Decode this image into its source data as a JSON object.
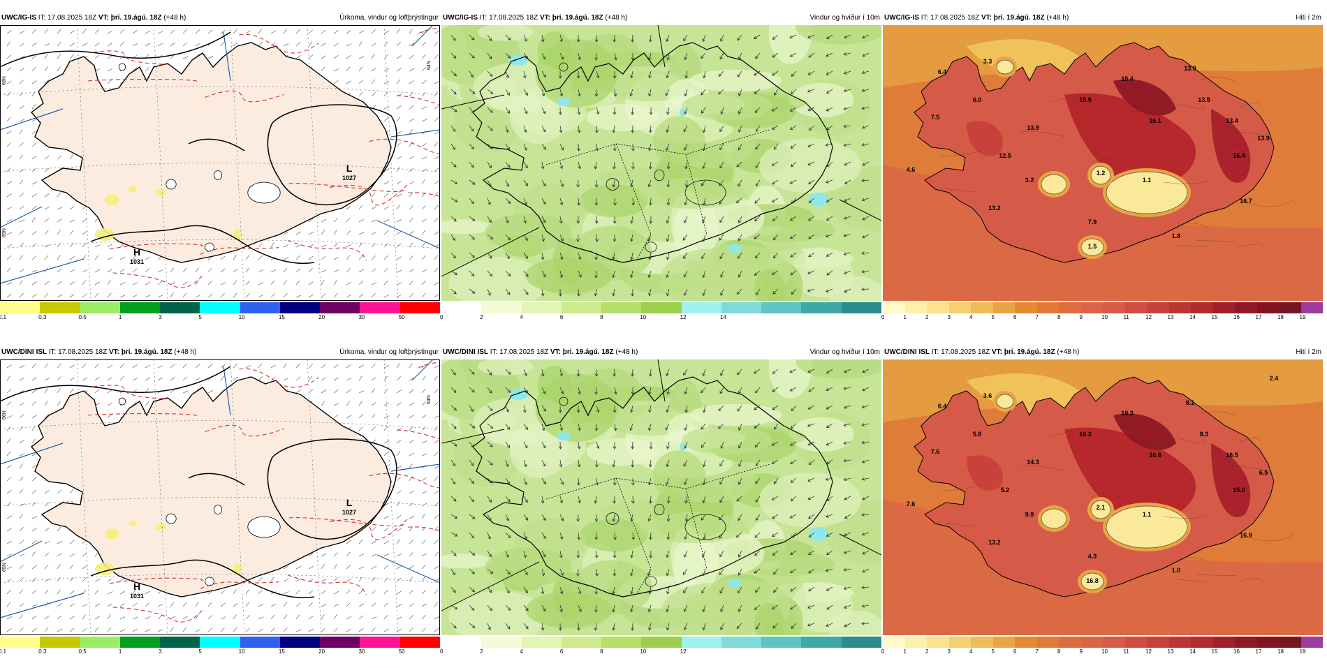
{
  "panels": [
    {
      "model": "UWC/IG-IS",
      "it": "IT: 17.08.2025 18Z",
      "vt": "VT: þri. 19.ágú. 18Z",
      "lead": "(+48 h)",
      "product": "Úrkoma, vindur og loftþrýstingur",
      "type": "precip",
      "labels": [
        {
          "text": "H",
          "big": true
        },
        {
          "text": "1031",
          "big": false
        },
        {
          "text": "L",
          "big": true
        },
        {
          "text": "1027",
          "big": false
        }
      ],
      "lat_labels": [
        "66N",
        "65N",
        "64N"
      ]
    },
    {
      "model": "UWC/IG-IS",
      "it": "IT: 17.08.2025 18Z",
      "vt": "VT: þri. 19.ágú. 18Z",
      "lead": "(+48 h)",
      "product": "Vindur og hviður í 10m",
      "type": "wind"
    },
    {
      "model": "UWC/IG-IS",
      "it": "IT: 17.08.2025 18Z",
      "vt": "VT: þri. 19.ágú. 18Z",
      "lead": "(+48 h)",
      "product": "Hiti í 2m",
      "type": "temp",
      "values": [
        "3.3",
        "6.4",
        "6.0",
        "7.5",
        "4.6",
        "12.5",
        "13.2",
        "13.9",
        "15.5",
        "15.4",
        "13.0",
        "13.5",
        "13.4",
        "13.9",
        "16.1",
        "16.4",
        "16.7",
        "3.2",
        "1.2",
        "1.1",
        "1.8",
        "7.9",
        "1.5"
      ]
    },
    {
      "model": "UWC/DINI ISL",
      "it": "IT: 17.08.2025 18Z",
      "vt": "VT: þri. 19.ágú. 18Z",
      "lead": "(+48 h)",
      "product": "Úrkoma, vindur og loftþrýstingur",
      "type": "precip",
      "labels": [
        {
          "text": "H",
          "big": true
        },
        {
          "text": "1031",
          "big": false
        },
        {
          "text": "L",
          "big": true
        },
        {
          "text": "1027",
          "big": false
        }
      ],
      "lat_labels": [
        "66N",
        "65N",
        "64N"
      ]
    },
    {
      "model": "UWC/DINI ISL",
      "it": "IT: 17.08.2025 18Z",
      "vt": "VT: þri. 19.ágú. 18Z",
      "lead": "(+48 h)",
      "product": "Vindur og hviður í 10m",
      "type": "wind"
    },
    {
      "model": "UWC/DINI ISL",
      "it": "IT: 17.08.2025 18Z",
      "vt": "VT: þri. 19.ágú. 18Z",
      "lead": "(+48 h)",
      "product": "Hiti í 2m",
      "type": "temp",
      "values": [
        "3.6",
        "6.4",
        "5.8",
        "7.6",
        "7.6",
        "5.2",
        "13.2",
        "14.3",
        "16.3",
        "18.3",
        "8.1",
        "8.3",
        "16.5",
        "6.5",
        "16.6",
        "15.0",
        "16.9",
        "9.9",
        "2.1",
        "1.1",
        "1.0",
        "4.3",
        "16.8",
        "2.4"
      ]
    }
  ],
  "colorbars": {
    "precip": {
      "colors": [
        "#ffff88",
        "#c8c800",
        "#9bee64",
        "#00a01e",
        "#006448",
        "#00ffff",
        "#3060f0",
        "#000080",
        "#6e0064",
        "#ff1493",
        "#ff0000"
      ],
      "ticks": [
        "0.1",
        "0.3",
        "0.5",
        "1",
        "3",
        "5",
        "10",
        "15",
        "20",
        "30",
        "50"
      ]
    },
    "wind": {
      "colors": [
        "#ffffff",
        "#f4fbd6",
        "#e3f5b4",
        "#cdeb8c",
        "#b4df68",
        "#9ccf4c",
        "#a0f0f0",
        "#80dada",
        "#5ec4c4",
        "#3ea8a8",
        "#2a8c8c"
      ],
      "ticks_top": [
        "0",
        "2",
        "4",
        "6",
        "8",
        "10",
        "12",
        "14"
      ],
      "ticks_bottom": [
        "0",
        "2",
        "4",
        "6",
        "8",
        "10",
        "12"
      ]
    },
    "temp": {
      "colors": [
        "#fffbc8",
        "#fdf0a8",
        "#fbe28c",
        "#f5d070",
        "#f0bc58",
        "#e9a444",
        "#e68a32",
        "#e07a36",
        "#de6c3e",
        "#dc6446",
        "#d85a48",
        "#d04c44",
        "#c8403c",
        "#bd3434",
        "#b02a2e",
        "#a01f2a",
        "#901824",
        "#821420",
        "#761622",
        "#9b3c9e"
      ],
      "ticks": [
        "0",
        "1",
        "2",
        "3",
        "4",
        "5",
        "6",
        "7",
        "8",
        "9",
        "10",
        "11",
        "12",
        "13",
        "14",
        "15",
        "16",
        "17",
        "18",
        "19"
      ]
    }
  }
}
